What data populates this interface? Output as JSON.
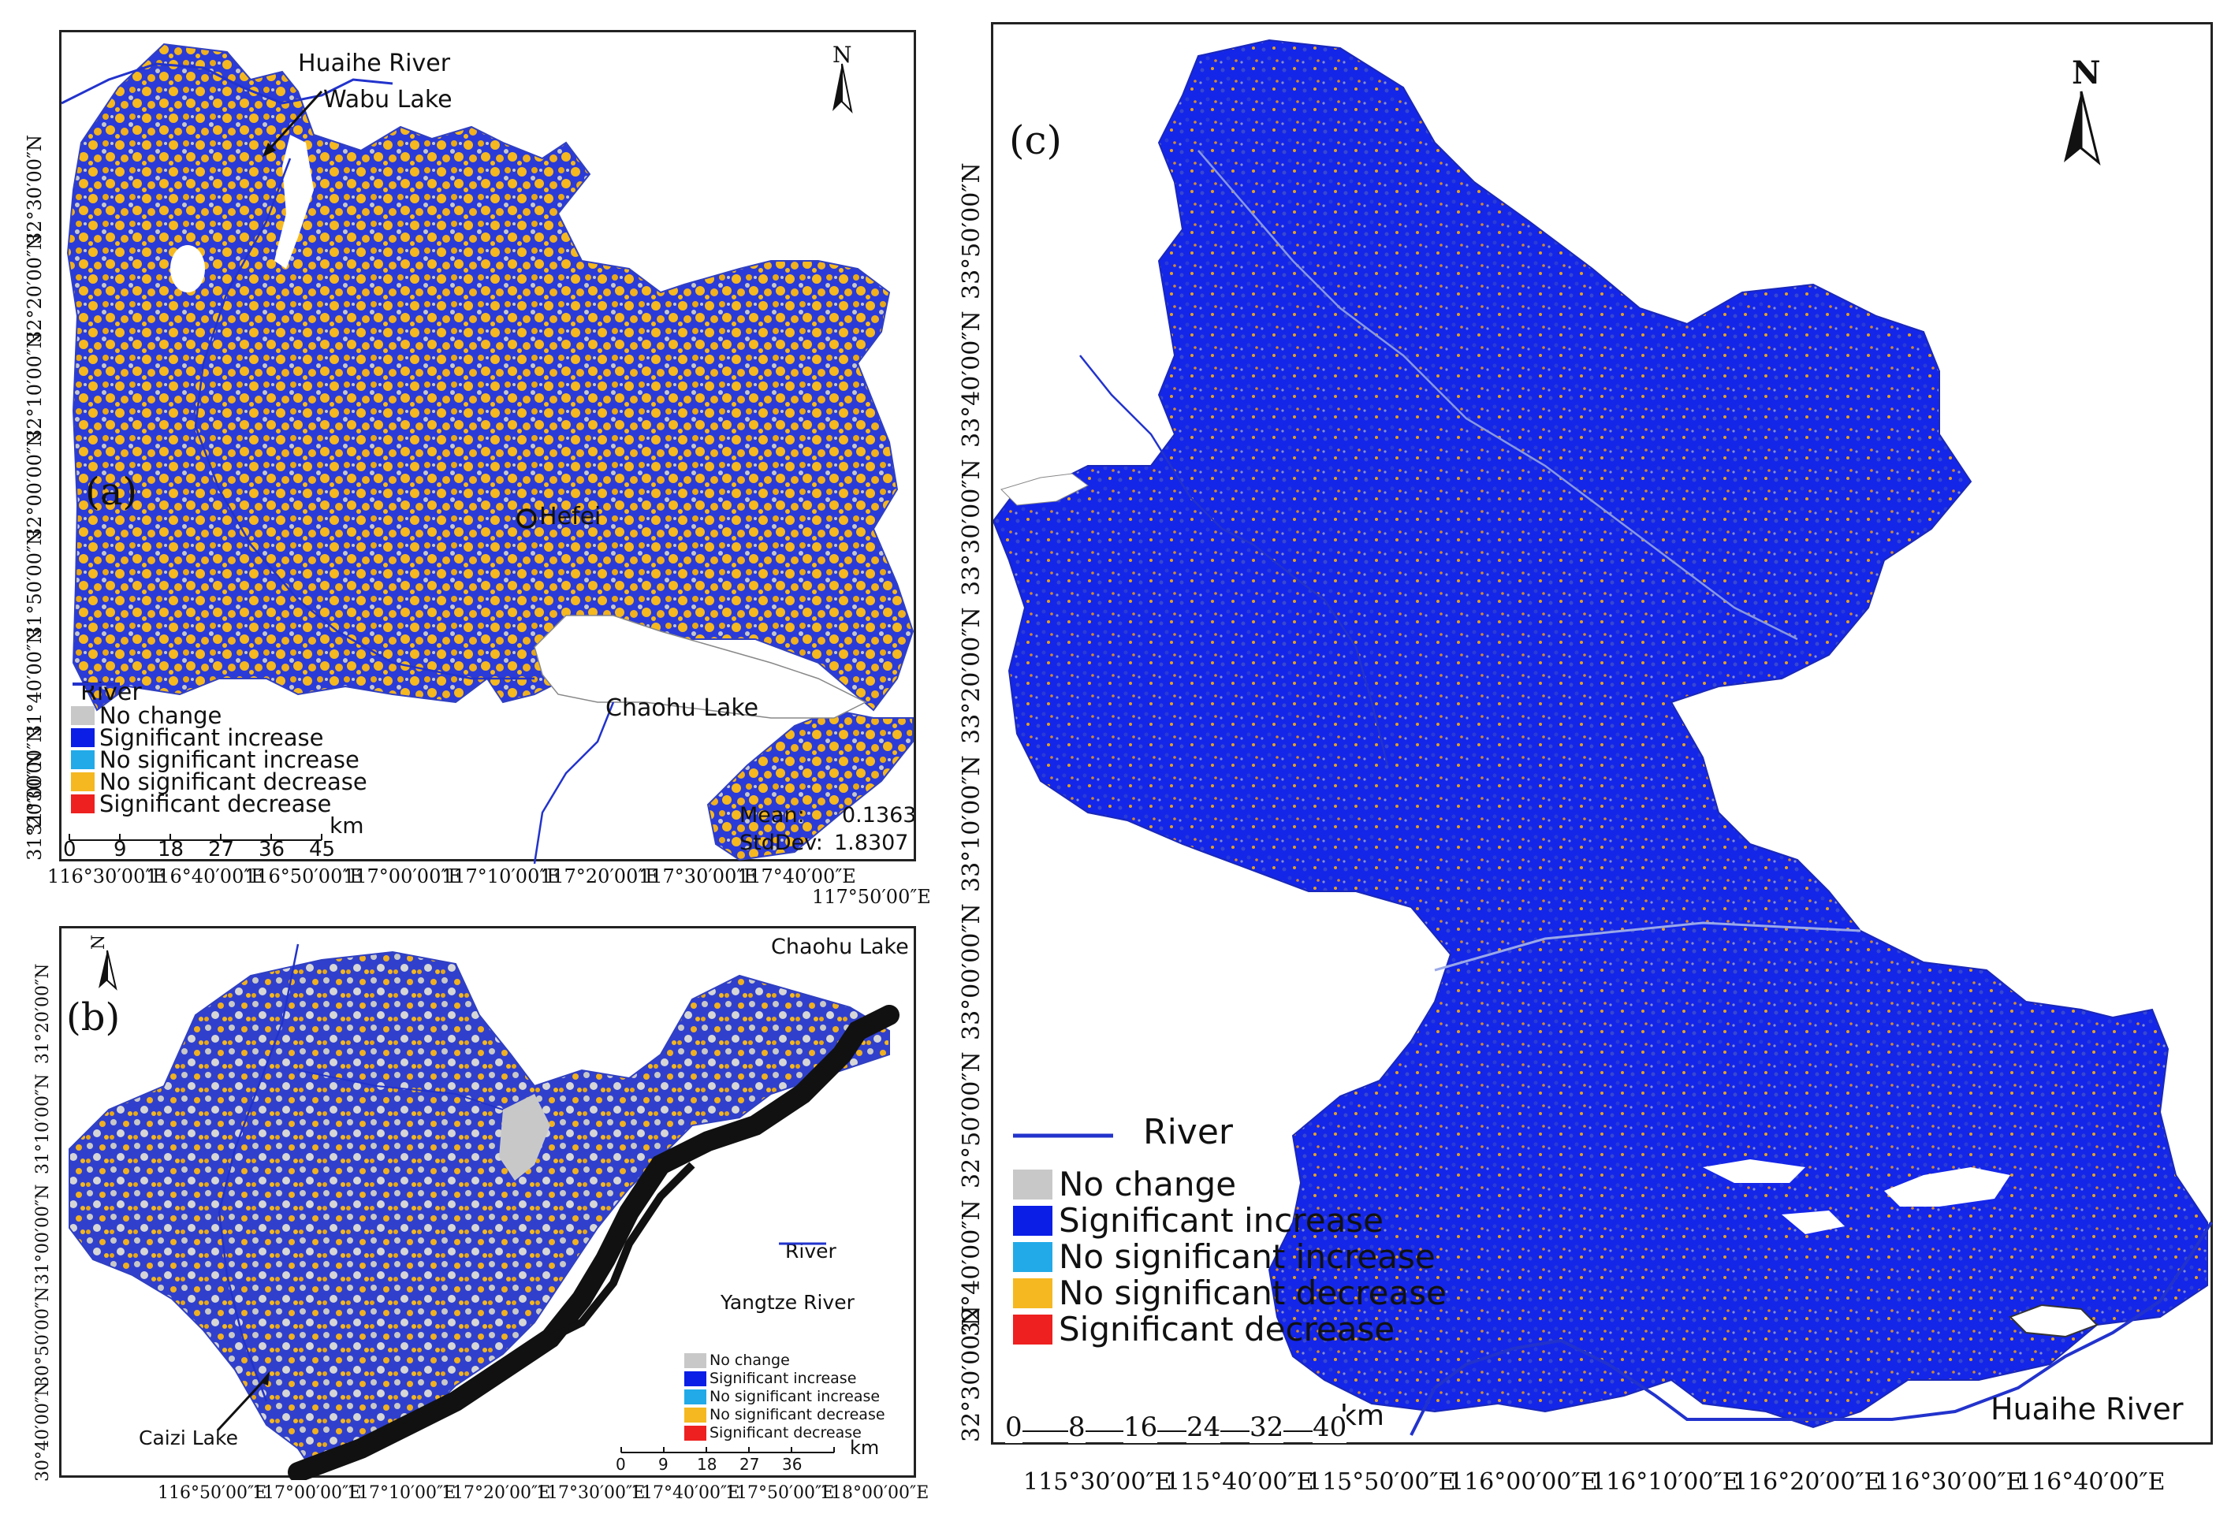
{
  "colors": {
    "river": "#2233cc",
    "no_change": "#c8c8c8",
    "significant_increase": "#0a1ee6",
    "no_significant_increase": "#22aae8",
    "no_significant_decrease": "#f5b820",
    "significant_decrease": "#ee2020",
    "lake": "#ffffff",
    "yangtze": "#111111"
  },
  "legend_items": [
    "No change",
    "Significant increase",
    "No significant increase",
    "No significant decrease",
    "Significant decrease"
  ],
  "river_label": "River",
  "panel_a": {
    "letter": "(a)",
    "north": "N",
    "places": {
      "huaihe_river": "Huaihe River",
      "wabu_lake": "Wabu Lake",
      "hefei": "Hefei",
      "chaohu_lake": "Chaohu Lake"
    },
    "stats": {
      "mean_label": "Mean:",
      "mean_value": "0.1363",
      "std_label": "StdDev:",
      "std_value": "1.8307"
    },
    "scale": {
      "ticks": [
        "0",
        "9",
        "18",
        "27",
        "36",
        "45"
      ],
      "unit": "km"
    },
    "lat_labels": [
      "32°30′00″N",
      "32°20′00″N",
      "32°10′00″N",
      "32°00′00″N",
      "31°50′00″N",
      "31°40′00″N",
      "31°30′00″N",
      "31°20′00″N"
    ],
    "lon_labels": [
      "116°30′00″E",
      "116°40′00″E",
      "116°50′00″E",
      "117°00′00″E",
      "117°10′00″E",
      "117°20′00″E",
      "117°30′00″E",
      "117°40′00″E",
      "117°50′00″E"
    ]
  },
  "panel_b": {
    "letter": "(b)",
    "north": "N",
    "places": {
      "chaohu_lake": "Chaohu Lake",
      "river": "River",
      "yangtze_river": "Yangtze River",
      "caizi_lake": "Caizi Lake"
    },
    "scale": {
      "ticks": [
        "0",
        "9",
        "18",
        "27",
        "36"
      ],
      "unit": "km"
    },
    "lat_labels": [
      "31°20′00″N",
      "31°10′00″N",
      "31°00′00″N",
      "30°50′00″N",
      "30°40′00″N"
    ],
    "lon_labels": [
      "116°50′00″E",
      "117°00′00″E",
      "117°10′00″E",
      "117°20′00″E",
      "117°30′00″E",
      "117°40′00″E",
      "117°50′00″E",
      "118°00′00″E"
    ]
  },
  "panel_c": {
    "letter": "(c)",
    "north": "N",
    "places": {
      "huaihe_river": "Huaihe River"
    },
    "scale": {
      "ticks": [
        "0",
        "8",
        "16",
        "24",
        "32",
        "40"
      ],
      "unit": "km"
    },
    "lat_labels": [
      "33°50′00″N",
      "33°40′00″N",
      "33°30′00″N",
      "33°20′00″N",
      "33°10′00″N",
      "33°00′00″N",
      "32°50′00″N",
      "32°40′00″N",
      "32°30′00″N"
    ],
    "lon_labels": [
      "115°30′00″E",
      "115°40′00″E",
      "115°50′00″E",
      "116°00′00″E",
      "116°10′00″E",
      "116°20′00″E",
      "116°30′00″E",
      "116°40′00″E"
    ]
  }
}
